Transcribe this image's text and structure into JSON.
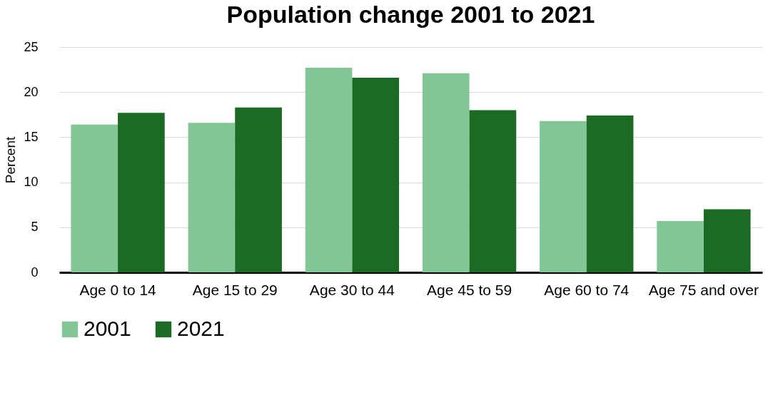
{
  "chart_data": {
    "type": "bar",
    "title": "Population change 2001 to 2021",
    "ylabel": "Percent",
    "categories": [
      "Age 0 to 14",
      "Age 15 to 29",
      "Age 30 to 44",
      "Age 45 to 59",
      "Age 60 to 74",
      "Age 75 and over"
    ],
    "series": [
      {
        "name": "2001",
        "color": "#81c694",
        "values": [
          16.4,
          16.6,
          22.7,
          22.1,
          16.8,
          5.7
        ]
      },
      {
        "name": "2021",
        "color": "#1b6b25",
        "values": [
          17.7,
          18.3,
          21.6,
          18.0,
          17.4,
          7.0
        ]
      }
    ],
    "ylim": [
      0,
      25
    ],
    "yticks": [
      0,
      5,
      10,
      15,
      20,
      25
    ],
    "grid": "y",
    "legend": "bottom"
  }
}
